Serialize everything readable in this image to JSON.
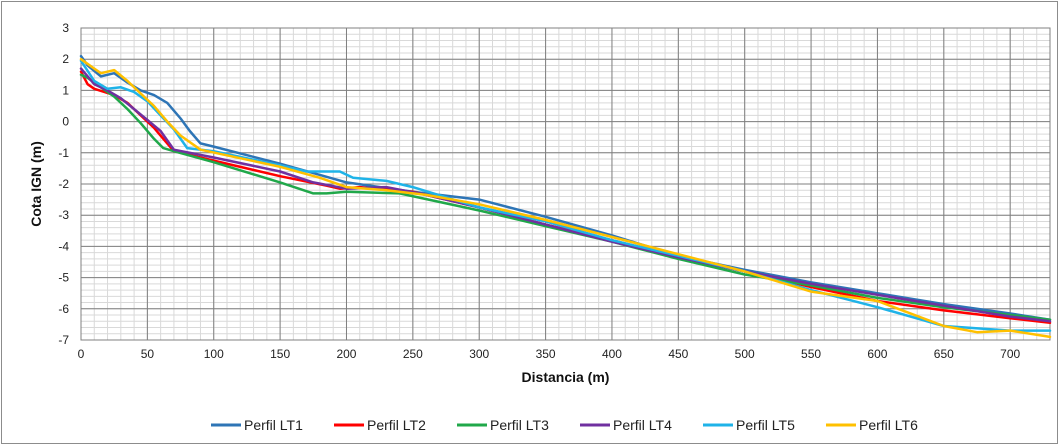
{
  "chart_data": {
    "type": "line",
    "title": "",
    "xlabel": "Distancia (m)",
    "ylabel": "Cota IGN (m)",
    "xlim": [
      0,
      730
    ],
    "ylim": [
      -7,
      3
    ],
    "x_ticks": [
      0,
      50,
      100,
      150,
      200,
      250,
      300,
      350,
      400,
      450,
      500,
      550,
      600,
      650,
      700
    ],
    "y_ticks": [
      3,
      2,
      1,
      0,
      -1,
      -2,
      -3,
      -4,
      -5,
      -6,
      -7
    ],
    "x_tick_labels": [
      "0",
      "50",
      "100",
      "150",
      "200",
      "250",
      "300",
      "350",
      "400",
      "450",
      "500",
      "550",
      "600",
      "650",
      "700"
    ],
    "y_tick_labels": [
      "3",
      "2",
      "1",
      "0",
      "-1",
      "-2",
      "-3",
      "-4",
      "-5",
      "-6",
      "-7"
    ],
    "x_minor_step": 10,
    "y_minor_step": 0.2,
    "grid": true,
    "legend_position": "bottom",
    "series": [
      {
        "name": "Perfil LT1",
        "color": "#2e75b6",
        "points": [
          [
            0,
            2.1
          ],
          [
            5,
            1.8
          ],
          [
            15,
            1.45
          ],
          [
            25,
            1.55
          ],
          [
            35,
            1.25
          ],
          [
            45,
            1.0
          ],
          [
            55,
            0.85
          ],
          [
            65,
            0.6
          ],
          [
            75,
            0.1
          ],
          [
            82,
            -0.3
          ],
          [
            90,
            -0.7
          ],
          [
            100,
            -0.8
          ],
          [
            150,
            -1.35
          ],
          [
            200,
            -1.95
          ],
          [
            250,
            -2.25
          ],
          [
            300,
            -2.5
          ],
          [
            350,
            -3.05
          ],
          [
            400,
            -3.65
          ],
          [
            450,
            -4.3
          ],
          [
            500,
            -4.75
          ],
          [
            550,
            -5.15
          ],
          [
            600,
            -5.5
          ],
          [
            650,
            -5.85
          ],
          [
            700,
            -6.15
          ],
          [
            730,
            -6.35
          ]
        ]
      },
      {
        "name": "Perfil LT2",
        "color": "#ff0000",
        "points": [
          [
            0,
            1.6
          ],
          [
            5,
            1.2
          ],
          [
            10,
            1.05
          ],
          [
            25,
            0.85
          ],
          [
            35,
            0.6
          ],
          [
            45,
            0.2
          ],
          [
            55,
            -0.2
          ],
          [
            62,
            -0.55
          ],
          [
            70,
            -0.95
          ],
          [
            100,
            -1.25
          ],
          [
            150,
            -1.75
          ],
          [
            185,
            -2.05
          ],
          [
            195,
            -2.15
          ],
          [
            210,
            -2.1
          ],
          [
            250,
            -2.25
          ],
          [
            300,
            -2.75
          ],
          [
            350,
            -3.3
          ],
          [
            400,
            -3.8
          ],
          [
            450,
            -4.35
          ],
          [
            500,
            -4.8
          ],
          [
            550,
            -5.3
          ],
          [
            600,
            -5.75
          ],
          [
            650,
            -6.05
          ],
          [
            700,
            -6.3
          ],
          [
            730,
            -6.45
          ]
        ]
      },
      {
        "name": "Perfil LT3",
        "color": "#20a84a",
        "points": [
          [
            0,
            1.5
          ],
          [
            5,
            1.4
          ],
          [
            15,
            1.1
          ],
          [
            25,
            0.8
          ],
          [
            35,
            0.4
          ],
          [
            45,
            -0.05
          ],
          [
            55,
            -0.55
          ],
          [
            62,
            -0.85
          ],
          [
            70,
            -0.95
          ],
          [
            100,
            -1.3
          ],
          [
            150,
            -1.95
          ],
          [
            175,
            -2.3
          ],
          [
            185,
            -2.3
          ],
          [
            200,
            -2.25
          ],
          [
            240,
            -2.3
          ],
          [
            300,
            -2.85
          ],
          [
            350,
            -3.35
          ],
          [
            400,
            -3.85
          ],
          [
            450,
            -4.4
          ],
          [
            500,
            -4.9
          ],
          [
            550,
            -5.25
          ],
          [
            600,
            -5.65
          ],
          [
            650,
            -5.95
          ],
          [
            700,
            -6.2
          ],
          [
            730,
            -6.35
          ]
        ]
      },
      {
        "name": "Perfil LT4",
        "color": "#7030a0",
        "points": [
          [
            0,
            1.7
          ],
          [
            10,
            1.2
          ],
          [
            20,
            1.0
          ],
          [
            30,
            0.75
          ],
          [
            40,
            0.4
          ],
          [
            50,
            0.05
          ],
          [
            60,
            -0.3
          ],
          [
            70,
            -0.9
          ],
          [
            100,
            -1.15
          ],
          [
            150,
            -1.6
          ],
          [
            175,
            -1.95
          ],
          [
            200,
            -2.15
          ],
          [
            230,
            -2.1
          ],
          [
            260,
            -2.35
          ],
          [
            300,
            -2.75
          ],
          [
            350,
            -3.3
          ],
          [
            400,
            -3.85
          ],
          [
            450,
            -4.35
          ],
          [
            500,
            -4.8
          ],
          [
            550,
            -5.2
          ],
          [
            600,
            -5.55
          ],
          [
            650,
            -5.9
          ],
          [
            700,
            -6.25
          ],
          [
            730,
            -6.4
          ]
        ]
      },
      {
        "name": "Perfil LT5",
        "color": "#1fb3e8",
        "points": [
          [
            0,
            1.95
          ],
          [
            10,
            1.3
          ],
          [
            20,
            1.05
          ],
          [
            30,
            1.1
          ],
          [
            40,
            0.95
          ],
          [
            50,
            0.65
          ],
          [
            60,
            0.2
          ],
          [
            70,
            -0.25
          ],
          [
            80,
            -0.85
          ],
          [
            100,
            -0.95
          ],
          [
            150,
            -1.4
          ],
          [
            170,
            -1.6
          ],
          [
            195,
            -1.6
          ],
          [
            205,
            -1.8
          ],
          [
            230,
            -1.9
          ],
          [
            250,
            -2.1
          ],
          [
            300,
            -2.75
          ],
          [
            350,
            -3.2
          ],
          [
            400,
            -3.8
          ],
          [
            450,
            -4.3
          ],
          [
            500,
            -4.8
          ],
          [
            550,
            -5.4
          ],
          [
            600,
            -5.95
          ],
          [
            650,
            -6.55
          ],
          [
            700,
            -6.7
          ],
          [
            730,
            -6.7
          ]
        ]
      },
      {
        "name": "Perfil LT6",
        "color": "#ffc000",
        "points": [
          [
            0,
            2.0
          ],
          [
            10,
            1.7
          ],
          [
            15,
            1.55
          ],
          [
            25,
            1.65
          ],
          [
            35,
            1.3
          ],
          [
            45,
            0.9
          ],
          [
            55,
            0.5
          ],
          [
            65,
            0.0
          ],
          [
            75,
            -0.45
          ],
          [
            90,
            -0.9
          ],
          [
            150,
            -1.45
          ],
          [
            180,
            -1.8
          ],
          [
            200,
            -2.1
          ],
          [
            230,
            -2.2
          ],
          [
            260,
            -2.35
          ],
          [
            300,
            -2.65
          ],
          [
            350,
            -3.15
          ],
          [
            400,
            -3.7
          ],
          [
            450,
            -4.25
          ],
          [
            500,
            -4.8
          ],
          [
            550,
            -5.45
          ],
          [
            600,
            -5.75
          ],
          [
            650,
            -6.55
          ],
          [
            675,
            -6.75
          ],
          [
            700,
            -6.7
          ],
          [
            730,
            -6.9
          ]
        ]
      }
    ]
  }
}
